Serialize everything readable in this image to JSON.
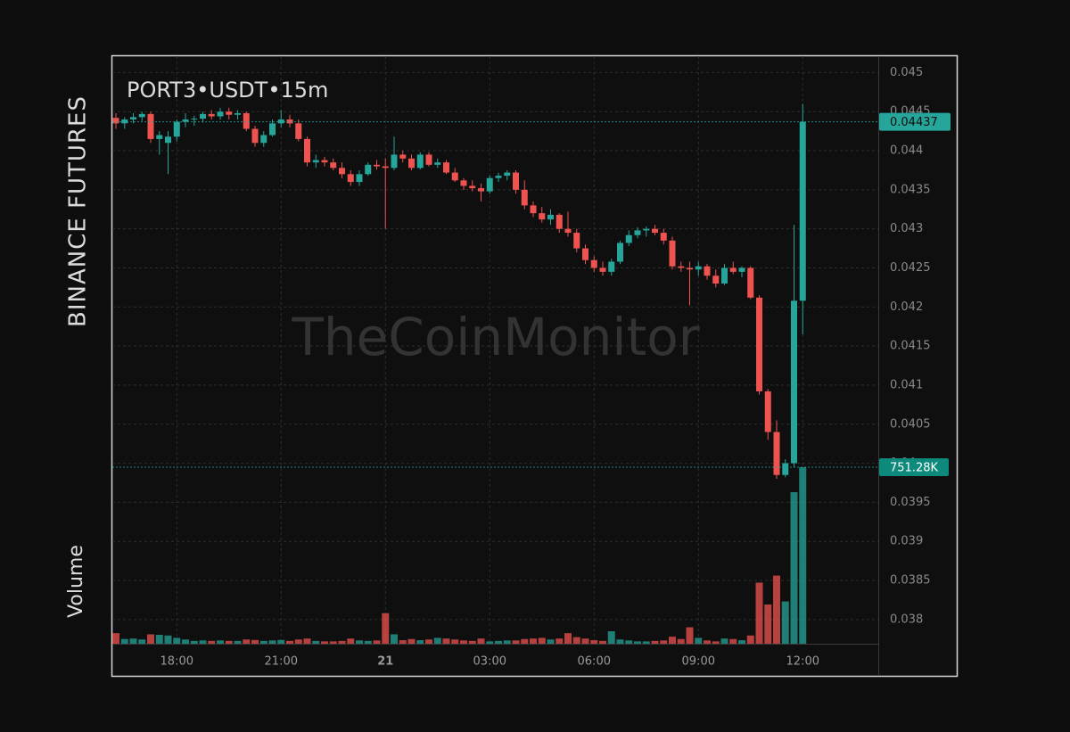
{
  "chart_data": {
    "type": "candlestick",
    "title": "PORT3•USDT•15m",
    "exchange": "BINANCE FUTURES",
    "volume_label": "Volume",
    "watermark": "TheCoinMonitor",
    "up_color": "#26a69a",
    "down_color": "#ef5350",
    "x": [
      "16:15",
      "16:30",
      "16:45",
      "17:00",
      "17:15",
      "17:30",
      "17:45",
      "18:00",
      "18:15",
      "18:30",
      "18:45",
      "19:00",
      "19:15",
      "19:30",
      "19:45",
      "20:00",
      "20:15",
      "20:30",
      "20:45",
      "21:00",
      "21:15",
      "21:30",
      "21:45",
      "22:00",
      "22:15",
      "22:30",
      "22:45",
      "23:00",
      "23:15",
      "23:30",
      "23:45",
      "00:00",
      "00:15",
      "00:30",
      "00:45",
      "01:00",
      "01:15",
      "01:30",
      "01:45",
      "02:00",
      "02:15",
      "02:30",
      "02:45",
      "03:00",
      "03:15",
      "03:30",
      "03:45",
      "04:00",
      "04:15",
      "04:30",
      "04:45",
      "05:00",
      "05:15",
      "05:30",
      "05:45",
      "06:00",
      "06:15",
      "06:30",
      "06:45",
      "07:00",
      "07:15",
      "07:30",
      "07:45",
      "08:00",
      "08:15",
      "08:30",
      "08:45",
      "09:00",
      "09:15",
      "09:30",
      "09:45",
      "10:00",
      "10:15",
      "10:30",
      "10:45",
      "11:00",
      "11:15",
      "11:30",
      "11:45",
      "12:00"
    ],
    "open": [
      0.04442,
      0.04435,
      0.0444,
      0.04443,
      0.04447,
      0.04415,
      0.0441,
      0.04418,
      0.04437,
      0.0444,
      0.04441,
      0.04447,
      0.04444,
      0.0445,
      0.04446,
      0.04448,
      0.04428,
      0.0441,
      0.0442,
      0.04435,
      0.0444,
      0.04435,
      0.04415,
      0.04385,
      0.04388,
      0.04385,
      0.04378,
      0.0437,
      0.0436,
      0.0437,
      0.04382,
      0.0438,
      0.04378,
      0.04395,
      0.0439,
      0.04378,
      0.04395,
      0.04382,
      0.04385,
      0.04372,
      0.04362,
      0.04355,
      0.04352,
      0.04348,
      0.04365,
      0.04368,
      0.04372,
      0.0435,
      0.0433,
      0.0432,
      0.04312,
      0.04318,
      0.043,
      0.04295,
      0.04275,
      0.0426,
      0.0425,
      0.04245,
      0.04258,
      0.04282,
      0.04292,
      0.04298,
      0.043,
      0.04295,
      0.04285,
      0.04252,
      0.0425,
      0.04248,
      0.04252,
      0.0424,
      0.0423,
      0.0425,
      0.04245,
      0.0425,
      0.04212,
      0.04092,
      0.0404,
      0.03985,
      0.04,
      0.04208
    ],
    "high": [
      0.04448,
      0.04443,
      0.04448,
      0.0445,
      0.0445,
      0.04425,
      0.04425,
      0.0444,
      0.04448,
      0.04445,
      0.0445,
      0.04452,
      0.04455,
      0.04455,
      0.04452,
      0.0445,
      0.04432,
      0.04425,
      0.0444,
      0.04452,
      0.04446,
      0.0444,
      0.04418,
      0.04395,
      0.04392,
      0.0439,
      0.04385,
      0.04375,
      0.04375,
      0.04385,
      0.04388,
      0.0439,
      0.04418,
      0.044,
      0.04395,
      0.04398,
      0.04398,
      0.0439,
      0.04388,
      0.04378,
      0.04365,
      0.04362,
      0.04358,
      0.04368,
      0.04372,
      0.04375,
      0.04375,
      0.04362,
      0.04335,
      0.04328,
      0.04325,
      0.0432,
      0.04322,
      0.043,
      0.0428,
      0.04265,
      0.04258,
      0.04262,
      0.04285,
      0.04298,
      0.04302,
      0.04303,
      0.04305,
      0.043,
      0.0429,
      0.04258,
      0.04258,
      0.04258,
      0.04255,
      0.04248,
      0.04255,
      0.04258,
      0.04252,
      0.04252,
      0.04215,
      0.04095,
      0.04055,
      0.04005,
      0.04305,
      0.0446
    ],
    "low": [
      0.04428,
      0.04428,
      0.04435,
      0.04438,
      0.0441,
      0.04395,
      0.0437,
      0.04412,
      0.0443,
      0.04432,
      0.04436,
      0.0444,
      0.0444,
      0.0444,
      0.0444,
      0.04425,
      0.04405,
      0.04405,
      0.04418,
      0.0443,
      0.0443,
      0.04412,
      0.0438,
      0.04378,
      0.0438,
      0.04375,
      0.04365,
      0.04355,
      0.04355,
      0.04368,
      0.04376,
      0.043,
      0.04375,
      0.04385,
      0.04375,
      0.04376,
      0.0438,
      0.04378,
      0.0437,
      0.0436,
      0.0435,
      0.04348,
      0.04335,
      0.04345,
      0.0436,
      0.04362,
      0.04345,
      0.04325,
      0.04315,
      0.04308,
      0.04305,
      0.04295,
      0.0429,
      0.0427,
      0.04255,
      0.04245,
      0.0424,
      0.0424,
      0.04255,
      0.04278,
      0.04288,
      0.0429,
      0.04292,
      0.0428,
      0.04248,
      0.04245,
      0.04202,
      0.0424,
      0.04235,
      0.04225,
      0.04228,
      0.04242,
      0.04238,
      0.0421,
      0.04088,
      0.0403,
      0.0398,
      0.03982,
      0.03995,
      0.04165
    ],
    "close": [
      0.04435,
      0.0444,
      0.04443,
      0.04447,
      0.04415,
      0.0442,
      0.04418,
      0.04437,
      0.0444,
      0.04441,
      0.04447,
      0.04444,
      0.0445,
      0.04446,
      0.04448,
      0.04428,
      0.0441,
      0.0442,
      0.04435,
      0.0444,
      0.04435,
      0.04415,
      0.04385,
      0.04388,
      0.04385,
      0.04378,
      0.0437,
      0.0436,
      0.0437,
      0.04382,
      0.0438,
      0.04378,
      0.04395,
      0.0439,
      0.04378,
      0.04395,
      0.04382,
      0.04385,
      0.04372,
      0.04362,
      0.04355,
      0.04352,
      0.04348,
      0.04365,
      0.04368,
      0.04372,
      0.0435,
      0.0433,
      0.0432,
      0.04312,
      0.04318,
      0.043,
      0.04295,
      0.04275,
      0.0426,
      0.0425,
      0.04245,
      0.04258,
      0.04282,
      0.04292,
      0.04298,
      0.043,
      0.04295,
      0.04285,
      0.04252,
      0.0425,
      0.04248,
      0.04252,
      0.0424,
      0.0423,
      0.0425,
      0.04245,
      0.0425,
      0.04212,
      0.04092,
      0.0404,
      0.03985,
      0.04,
      0.04208,
      0.04437
    ],
    "volume": [
      45000,
      20000,
      22000,
      18000,
      40000,
      38000,
      35000,
      25000,
      18000,
      12000,
      14000,
      12000,
      14000,
      12000,
      12000,
      18000,
      16000,
      12000,
      14000,
      16000,
      12000,
      18000,
      22000,
      12000,
      10000,
      10000,
      12000,
      22000,
      14000,
      12000,
      14000,
      130000,
      40000,
      15000,
      20000,
      15000,
      18000,
      25000,
      22000,
      18000,
      14000,
      12000,
      22000,
      10000,
      12000,
      14000,
      14000,
      20000,
      22000,
      25000,
      18000,
      22000,
      45000,
      28000,
      22000,
      15000,
      12000,
      53000,
      18000,
      14000,
      10000,
      10000,
      12000,
      14000,
      30000,
      20000,
      70000,
      25000,
      14000,
      10000,
      22000,
      20000,
      15000,
      35000,
      260000,
      167000,
      290000,
      180000,
      645000,
      751280
    ],
    "last_volume": {
      "value": 751280,
      "label": "751.28K"
    },
    "ylim": [
      0.03769,
      0.04521
    ],
    "yticks": [
      0.038,
      0.0385,
      0.039,
      0.0395,
      0.04,
      0.0405,
      0.041,
      0.0415,
      0.042,
      0.0425,
      0.043,
      0.0435,
      0.044,
      0.0445,
      0.045
    ],
    "xticks": [
      "18:00",
      "21:00",
      {
        "value": "00:00",
        "label": "21"
      },
      "03:00",
      "06:00",
      "09:00",
      "12:00"
    ],
    "grid": true
  }
}
